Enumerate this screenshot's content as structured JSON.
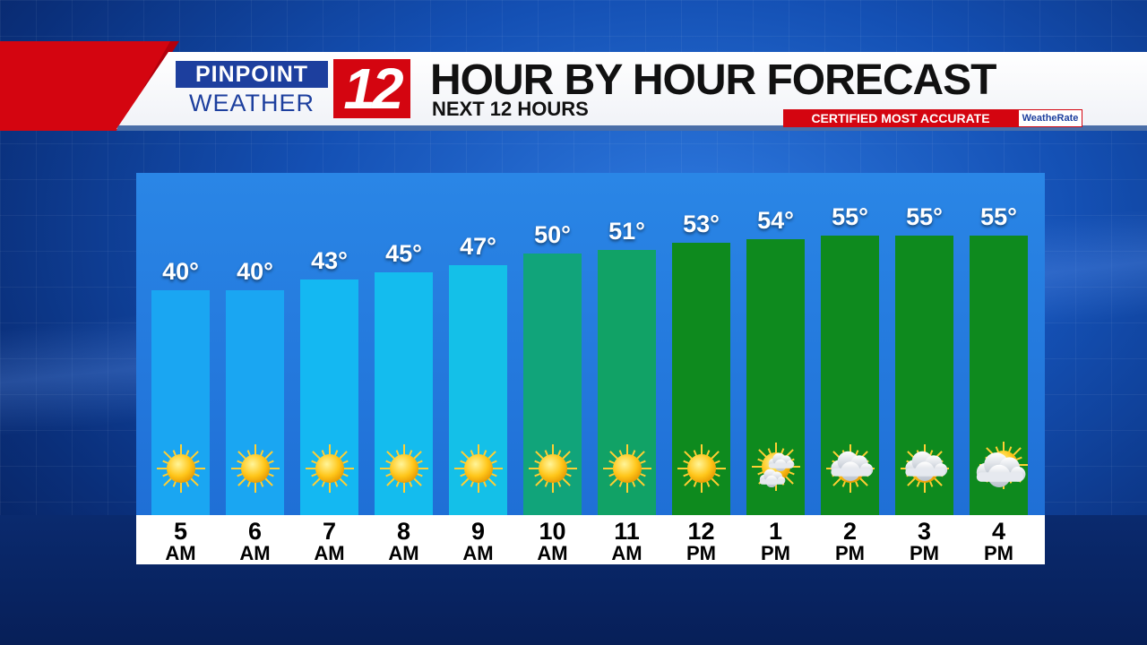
{
  "header": {
    "logo_top": "PINPOINT",
    "logo_bottom": "WEATHER",
    "logo_number": "12",
    "title": "HOUR BY HOUR FORECAST",
    "subtitle": "NEXT 12 HOURS",
    "certified": "CERTIFIED MOST ACCURATE",
    "certifier": "WeatheRate"
  },
  "colors": {
    "cold": "#1aaef0",
    "mild": "#11a47a",
    "warm": "#0e8a1e",
    "brand_red": "#d40510",
    "brand_blue": "#1d3f9e"
  },
  "chart_data": {
    "type": "bar",
    "title": "HOUR BY HOUR FORECAST",
    "subtitle": "NEXT 12 HOURS",
    "categories": [
      "5 AM",
      "6 AM",
      "7 AM",
      "8 AM",
      "9 AM",
      "10 AM",
      "11 AM",
      "12 PM",
      "1 PM",
      "2 PM",
      "3 PM",
      "4 PM"
    ],
    "hours": [
      "5",
      "6",
      "7",
      "8",
      "9",
      "10",
      "11",
      "12",
      "1",
      "2",
      "3",
      "4"
    ],
    "ampm": [
      "AM",
      "AM",
      "AM",
      "AM",
      "AM",
      "AM",
      "AM",
      "PM",
      "PM",
      "PM",
      "PM",
      "PM"
    ],
    "values": [
      40,
      40,
      43,
      45,
      47,
      50,
      51,
      53,
      54,
      55,
      55,
      55
    ],
    "labels": [
      "40°",
      "40°",
      "43°",
      "45°",
      "47°",
      "50°",
      "51°",
      "53°",
      "54°",
      "55°",
      "55°",
      "55°"
    ],
    "conditions": [
      "sunny-icon",
      "sunny-icon",
      "sunny-icon",
      "sunny-icon",
      "sunny-icon",
      "sunny-icon",
      "sunny-icon",
      "sunny-icon",
      "mostly-sunny-icon",
      "partly-cloudy-icon",
      "partly-cloudy-icon",
      "mostly-cloudy-icon"
    ],
    "bar_colors": [
      "#1aa6f2",
      "#1aa6f2",
      "#14b8f2",
      "#14bcee",
      "#14c0e8",
      "#11a47a",
      "#11a266",
      "#0e8a1e",
      "#0e8a1e",
      "#0e8a1e",
      "#0e8a1e",
      "#0e8a1e"
    ]
  }
}
